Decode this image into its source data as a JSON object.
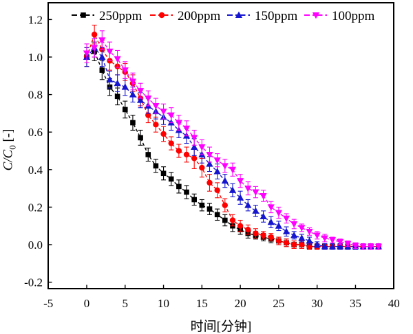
{
  "axes": {
    "xlabel": "时间[分钟]",
    "ylabel_main": "C/C",
    "ylabel_sub": "0",
    "ylabel_unit": " [-]",
    "xlim": [
      -5,
      40
    ],
    "ylim": [
      -0.2,
      1.2
    ],
    "xticks": [
      -5,
      0,
      5,
      10,
      15,
      20,
      25,
      30,
      35,
      40
    ],
    "yticks": [
      "-0.2",
      "0.0",
      "0.2",
      "0.4",
      "0.6",
      "0.8",
      "1.0",
      "1.2"
    ],
    "grid": false
  },
  "legend": {
    "position": "top-inside",
    "items": [
      "250ppm",
      "200ppm",
      "150ppm",
      "100ppm"
    ]
  },
  "chart_data": {
    "type": "line",
    "title": "",
    "xlabel": "时间[分钟]",
    "ylabel": "C/C0 [-]",
    "x": [
      0,
      1,
      2,
      3,
      4,
      5,
      6,
      7,
      8,
      9,
      10,
      11,
      12,
      13,
      14,
      15,
      16,
      17,
      18,
      19,
      20,
      21,
      22,
      23,
      24,
      25,
      26,
      27,
      28,
      29,
      30,
      31,
      32,
      33,
      34,
      35,
      36,
      37,
      38
    ],
    "series": [
      {
        "name": "250ppm",
        "color": "#000000",
        "marker": "square",
        "line_style": "dash-dot",
        "values": [
          1.0,
          1.03,
          0.93,
          0.84,
          0.79,
          0.72,
          0.65,
          0.57,
          0.48,
          0.42,
          0.38,
          0.35,
          0.31,
          0.28,
          0.24,
          0.21,
          0.19,
          0.16,
          0.13,
          0.1,
          0.08,
          0.06,
          0.05,
          0.04,
          0.03,
          0.02,
          0.01,
          0.0,
          0.0,
          -0.01,
          -0.01,
          -0.01,
          -0.01,
          -0.01,
          -0.01,
          -0.01,
          -0.01,
          -0.01,
          -0.01
        ],
        "errors": [
          0.05,
          0.05,
          0.05,
          0.045,
          0.045,
          0.045,
          0.04,
          0.04,
          0.035,
          0.035,
          0.035,
          0.035,
          0.035,
          0.035,
          0.03,
          0.03,
          0.03,
          0.03,
          0.03,
          0.03,
          0.025,
          0.025,
          0.02,
          0.02,
          0.02,
          0.02,
          0.02,
          0.02,
          0.02,
          0.015,
          0.015,
          0.015,
          0.015,
          0.015,
          0.015,
          0.015,
          0.015,
          0.015,
          0.015
        ]
      },
      {
        "name": "200ppm",
        "color": "#ff0000",
        "marker": "circle",
        "line_style": "dash-dot",
        "values": [
          1.0,
          1.12,
          1.04,
          0.98,
          0.95,
          0.92,
          0.86,
          0.78,
          0.69,
          0.64,
          0.59,
          0.54,
          0.5,
          0.48,
          0.46,
          0.41,
          0.33,
          0.29,
          0.21,
          0.13,
          0.1,
          0.08,
          0.06,
          0.05,
          0.04,
          0.02,
          0.01,
          0.0,
          0.0,
          -0.01,
          -0.01,
          -0.01,
          -0.01,
          -0.01,
          -0.01,
          -0.01,
          -0.01,
          -0.01,
          -0.01
        ],
        "errors": [
          0.05,
          0.05,
          0.05,
          0.05,
          0.045,
          0.045,
          0.045,
          0.04,
          0.04,
          0.04,
          0.04,
          0.035,
          0.035,
          0.04,
          0.055,
          0.05,
          0.045,
          0.04,
          0.035,
          0.03,
          0.03,
          0.025,
          0.025,
          0.02,
          0.02,
          0.02,
          0.02,
          0.02,
          0.02,
          0.015,
          0.015,
          0.015,
          0.015,
          0.015,
          0.015,
          0.015,
          0.015,
          0.015,
          0.015
        ]
      },
      {
        "name": "150ppm",
        "color": "#1616cf",
        "marker": "triangle-up",
        "line_style": "dash-dot",
        "values": [
          1.0,
          1.05,
          1.0,
          0.88,
          0.86,
          0.84,
          0.8,
          0.77,
          0.74,
          0.71,
          0.68,
          0.65,
          0.61,
          0.58,
          0.52,
          0.48,
          0.43,
          0.39,
          0.34,
          0.29,
          0.25,
          0.21,
          0.18,
          0.15,
          0.12,
          0.1,
          0.07,
          0.05,
          0.035,
          0.02,
          0.0,
          -0.01,
          -0.01,
          -0.01,
          -0.01,
          -0.01,
          -0.01,
          -0.01,
          -0.01
        ],
        "errors": [
          0.05,
          0.05,
          0.05,
          0.045,
          0.045,
          0.045,
          0.04,
          0.04,
          0.04,
          0.04,
          0.04,
          0.04,
          0.04,
          0.04,
          0.045,
          0.045,
          0.04,
          0.04,
          0.035,
          0.035,
          0.035,
          0.03,
          0.03,
          0.03,
          0.03,
          0.025,
          0.025,
          0.02,
          0.02,
          0.02,
          0.015,
          0.015,
          0.015,
          0.015,
          0.015,
          0.015,
          0.015,
          0.015,
          0.015
        ]
      },
      {
        "name": "100ppm",
        "color": "#ff00ff",
        "marker": "triangle-down",
        "line_style": "dash-dot",
        "values": [
          1.02,
          1.05,
          1.09,
          1.03,
          0.99,
          0.93,
          0.87,
          0.82,
          0.78,
          0.74,
          0.71,
          0.69,
          0.65,
          0.62,
          0.57,
          0.52,
          0.48,
          0.45,
          0.42,
          0.4,
          0.34,
          0.3,
          0.28,
          0.26,
          0.2,
          0.17,
          0.14,
          0.11,
          0.09,
          0.07,
          0.05,
          0.035,
          0.025,
          0.015,
          0.005,
          -0.005,
          -0.01,
          -0.01,
          -0.01
        ],
        "errors": [
          0.05,
          0.05,
          0.05,
          0.05,
          0.045,
          0.045,
          0.045,
          0.04,
          0.04,
          0.04,
          0.04,
          0.04,
          0.04,
          0.04,
          0.04,
          0.04,
          0.04,
          0.035,
          0.035,
          0.035,
          0.035,
          0.035,
          0.03,
          0.03,
          0.03,
          0.03,
          0.025,
          0.025,
          0.02,
          0.02,
          0.02,
          0.02,
          0.015,
          0.015,
          0.015,
          0.015,
          0.015,
          0.015,
          0.015
        ]
      }
    ]
  }
}
